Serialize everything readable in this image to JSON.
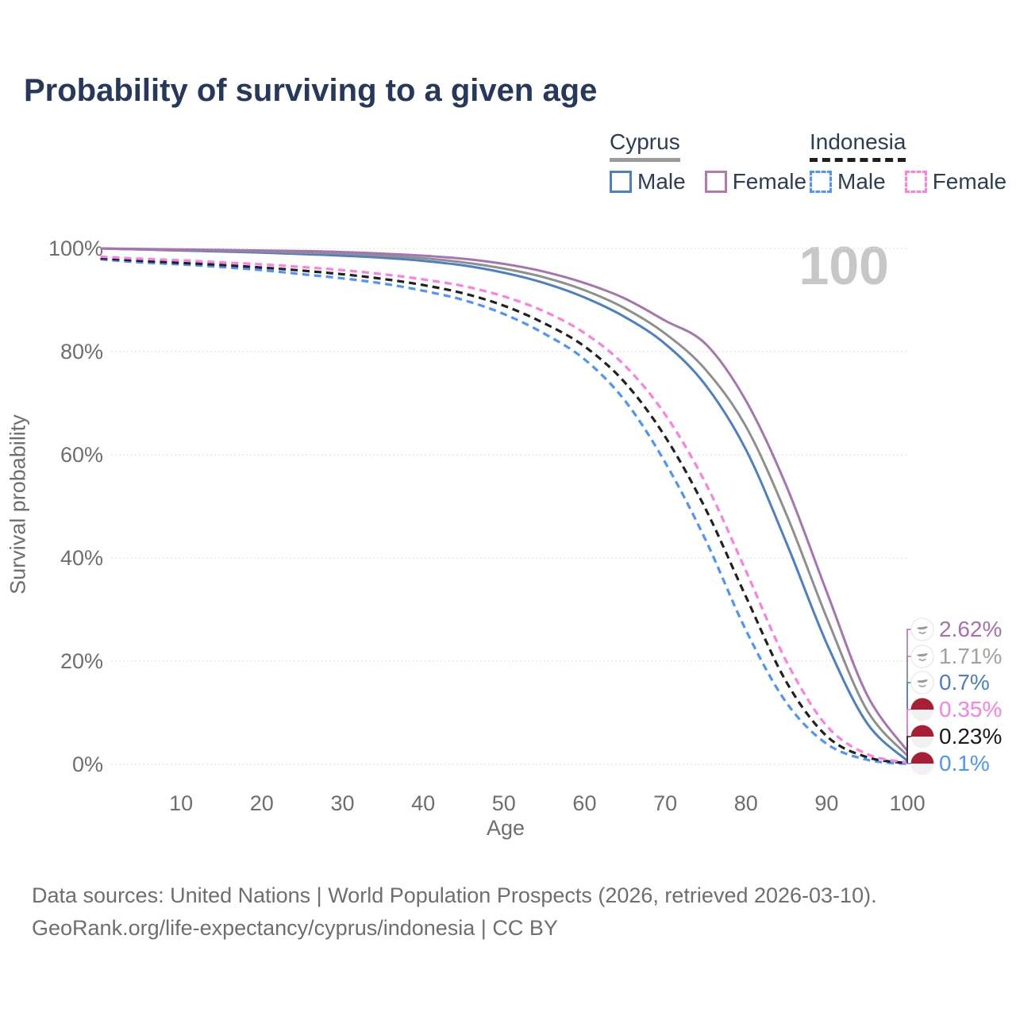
{
  "title": "Probability of surviving to a given age",
  "watermark": "100",
  "legend": {
    "groups": [
      {
        "name": "Cyprus",
        "line_style": "solid",
        "underline_color": "#9b9b9b",
        "items": [
          {
            "label": "Male",
            "color": "#4d7fc4",
            "dashed": false
          },
          {
            "label": "Female",
            "color": "#b578ae",
            "dashed": false
          }
        ]
      },
      {
        "name": "Indonesia",
        "line_style": "dashed",
        "underline_color": "#1f1f1f",
        "items": [
          {
            "label": "Male",
            "color": "#4d94ff",
            "dashed": true
          },
          {
            "label": "Female",
            "color": "#ff7fe1",
            "dashed": true
          }
        ]
      }
    ]
  },
  "chart_data": {
    "type": "line",
    "title": "Probability of surviving to a given age",
    "xlabel": "Age",
    "ylabel": "Survival probability",
    "xlim": [
      0,
      100
    ],
    "ylim": [
      0,
      100
    ],
    "grid": "horizontal-dotted",
    "x_ticks": [
      10,
      20,
      30,
      40,
      50,
      60,
      70,
      80,
      90,
      100
    ],
    "y_ticks": [
      0,
      20,
      40,
      60,
      80,
      100
    ],
    "y_tick_labels": [
      "0%",
      "20%",
      "40%",
      "60%",
      "80%",
      "100%"
    ],
    "x": [
      0,
      5,
      10,
      15,
      20,
      25,
      30,
      35,
      40,
      45,
      50,
      55,
      60,
      65,
      70,
      75,
      80,
      85,
      90,
      95,
      100
    ],
    "series": [
      {
        "name": "Cyprus Female",
        "country": "Cyprus",
        "sex": "Female",
        "color": "#a873b2",
        "dashed": false,
        "end_label": "2.62%",
        "label_color": "#a770ae",
        "flag": "cyprus",
        "values": [
          100,
          99.9,
          99.8,
          99.7,
          99.6,
          99.5,
          99.3,
          99.0,
          98.6,
          98.0,
          97.0,
          95.5,
          93.3,
          90.3,
          86.0,
          81.5,
          70.5,
          54.0,
          33.5,
          13.5,
          2.62
        ]
      },
      {
        "name": "Cyprus (both sexes)",
        "country": "Cyprus",
        "sex": "All",
        "color": "#8f8f8f",
        "dashed": false,
        "end_label": "1.71%",
        "label_color": "#a2a2a2",
        "flag": "cyprus",
        "values": [
          100,
          99.8,
          99.7,
          99.6,
          99.4,
          99.2,
          99.0,
          98.6,
          98.1,
          97.3,
          96.1,
          94.4,
          91.9,
          88.4,
          83.5,
          76.5,
          65.5,
          48.5,
          28.5,
          10.5,
          1.71
        ]
      },
      {
        "name": "Cyprus Male",
        "country": "Cyprus",
        "sex": "Male",
        "color": "#4d7fc4",
        "dashed": false,
        "end_label": "0.7%",
        "label_color": "#4b7fc4",
        "flag": "cyprus",
        "values": [
          100,
          99.8,
          99.6,
          99.4,
          99.2,
          98.9,
          98.6,
          98.2,
          97.6,
          96.7,
          95.3,
          93.3,
          90.5,
          86.7,
          81.5,
          73.5,
          61.0,
          43.0,
          23.5,
          8.0,
          0.7
        ]
      },
      {
        "name": "Indonesia Female",
        "country": "Indonesia",
        "sex": "Female",
        "color": "#ff7fe1",
        "dashed": true,
        "end_label": "0.35%",
        "label_color": "#ff7fe1",
        "flag": "indonesia",
        "values": [
          98.4,
          98.0,
          97.7,
          97.3,
          96.9,
          96.4,
          95.8,
          95.0,
          94.0,
          92.7,
          90.7,
          87.8,
          83.6,
          77.3,
          67.8,
          54.5,
          37.5,
          20.0,
          7.5,
          2.0,
          0.35
        ]
      },
      {
        "name": "Indonesia (both sexes)",
        "country": "Indonesia",
        "sex": "All",
        "color": "#212121",
        "dashed": true,
        "end_label": "0.23%",
        "label_color": "#1a1a1a",
        "flag": "indonesia",
        "values": [
          98.1,
          97.6,
          97.2,
          96.8,
          96.3,
          95.7,
          95.0,
          94.1,
          92.9,
          91.3,
          88.9,
          85.5,
          81.0,
          74.0,
          63.5,
          49.5,
          32.5,
          16.0,
          5.5,
          1.4,
          0.23
        ]
      },
      {
        "name": "Indonesia Male",
        "country": "Indonesia",
        "sex": "Male",
        "color": "#4d94ff",
        "dashed": true,
        "end_label": "0.1%",
        "label_color": "#4d94ff",
        "flag": "indonesia",
        "values": [
          97.9,
          97.3,
          96.9,
          96.4,
          95.8,
          95.0,
          94.2,
          93.2,
          91.8,
          90.0,
          87.3,
          83.5,
          78.5,
          70.5,
          58.5,
          43.5,
          26.0,
          12.0,
          4.0,
          0.9,
          0.1
        ]
      }
    ]
  },
  "footer": {
    "line1": "Data sources: United Nations | World Population Prospects (2026, retrieved 2026-03-10).",
    "line2": "GeoRank.org/life-expectancy/cyprus/indonesia | CC BY"
  }
}
